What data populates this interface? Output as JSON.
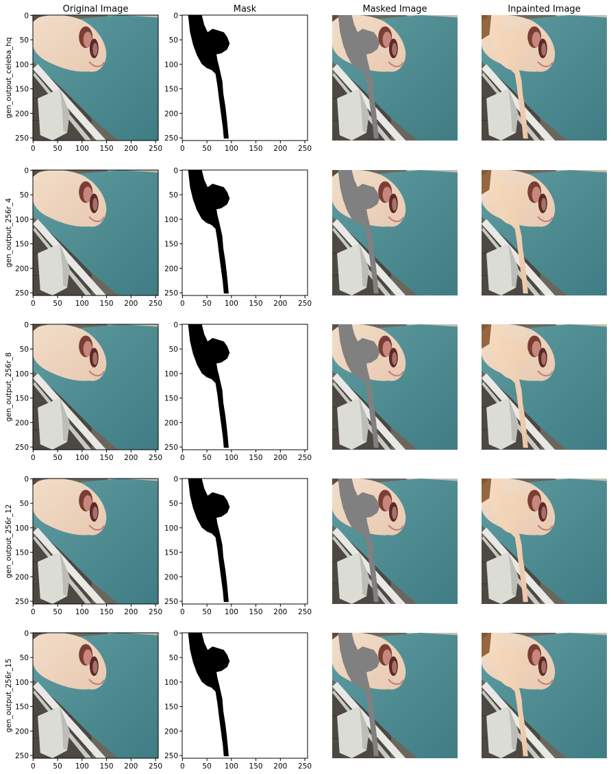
{
  "figure": {
    "column_titles": [
      "Original Image",
      "Mask",
      "Masked Image",
      "Inpainted Image"
    ],
    "row_labels": [
      "gen_output_celeba_hq",
      "gen_output_256r_4",
      "gen_output_256r_8",
      "gen_output_256r_12",
      "gen_output_256r_15"
    ],
    "x_ticks": [
      "0",
      "50",
      "100",
      "150",
      "200",
      "250"
    ],
    "y_ticks": [
      "0",
      "50",
      "100",
      "150",
      "200",
      "250"
    ],
    "axis_range": [
      0,
      255
    ],
    "axes_visible": [
      true,
      true,
      false,
      false
    ]
  },
  "colors": {
    "mask_fill": "#000000",
    "masked_gray": "#808080",
    "sheet_teal": "#4f8d93",
    "skin": "#ecd6c3",
    "floor_dark": "#4f4a43",
    "wall_light": "#b9b6a8"
  }
}
